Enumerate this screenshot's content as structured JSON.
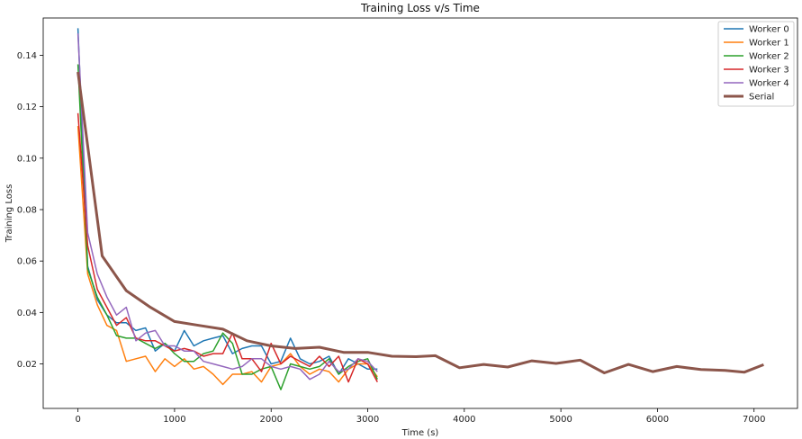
{
  "chart_data": {
    "type": "line",
    "title": "Training Loss v/s Time",
    "xlabel": "Time (s)",
    "ylabel": "Training Loss",
    "xlim": [
      -360,
      7450
    ],
    "ylim": [
      0.0027,
      0.1545
    ],
    "xticks": [
      0,
      1000,
      2000,
      3000,
      4000,
      5000,
      6000,
      7000
    ],
    "yticks": [
      0.02,
      0.04,
      0.06,
      0.08,
      0.1,
      0.12,
      0.14
    ],
    "ytick_labels": [
      "0.02",
      "0.04",
      "0.06",
      "0.08",
      "0.10",
      "0.12",
      "0.14"
    ],
    "legend": "top-right",
    "series": [
      {
        "name": "Worker 0",
        "color": "#1f77b4",
        "width": 1.5,
        "x": [
          0,
          100,
          200,
          300,
          400,
          500,
          600,
          700,
          800,
          900,
          1000,
          1100,
          1200,
          1300,
          1400,
          1500,
          1600,
          1700,
          1800,
          1900,
          2000,
          2100,
          2200,
          2300,
          2400,
          2500,
          2600,
          2700,
          2800,
          2900,
          3000,
          3100
        ],
        "y": [
          0.1505,
          0.058,
          0.045,
          0.039,
          0.036,
          0.036,
          0.033,
          0.034,
          0.025,
          0.028,
          0.025,
          0.033,
          0.027,
          0.029,
          0.03,
          0.031,
          0.024,
          0.026,
          0.027,
          0.027,
          0.02,
          0.021,
          0.03,
          0.022,
          0.02,
          0.021,
          0.023,
          0.016,
          0.022,
          0.02,
          0.018,
          0.018
        ]
      },
      {
        "name": "Worker 1",
        "color": "#ff7f0e",
        "width": 1.5,
        "x": [
          0,
          100,
          200,
          300,
          400,
          500,
          600,
          700,
          800,
          900,
          1000,
          1100,
          1200,
          1300,
          1400,
          1500,
          1600,
          1700,
          1800,
          1900,
          2000,
          2100,
          2200,
          2300,
          2400,
          2500,
          2600,
          2700,
          2800,
          2900,
          3000,
          3100
        ],
        "y": [
          0.1125,
          0.055,
          0.043,
          0.035,
          0.033,
          0.021,
          0.022,
          0.023,
          0.017,
          0.022,
          0.019,
          0.022,
          0.018,
          0.019,
          0.016,
          0.012,
          0.016,
          0.016,
          0.017,
          0.013,
          0.019,
          0.02,
          0.024,
          0.019,
          0.016,
          0.018,
          0.017,
          0.013,
          0.018,
          0.02,
          0.02,
          0.015
        ]
      },
      {
        "name": "Worker 2",
        "color": "#2ca02c",
        "width": 1.5,
        "x": [
          0,
          100,
          200,
          300,
          400,
          500,
          600,
          700,
          800,
          900,
          1000,
          1100,
          1200,
          1300,
          1400,
          1500,
          1600,
          1700,
          1800,
          1900,
          2000,
          2100,
          2200,
          2300,
          2400,
          2500,
          2600,
          2700,
          2800,
          2900,
          3000,
          3100
        ],
        "y": [
          0.1365,
          0.057,
          0.046,
          0.039,
          0.031,
          0.03,
          0.03,
          0.028,
          0.026,
          0.028,
          0.024,
          0.021,
          0.021,
          0.024,
          0.025,
          0.032,
          0.028,
          0.016,
          0.016,
          0.018,
          0.019,
          0.01,
          0.02,
          0.019,
          0.018,
          0.019,
          0.022,
          0.016,
          0.019,
          0.021,
          0.022,
          0.014
        ]
      },
      {
        "name": "Worker 3",
        "color": "#d62728",
        "width": 1.5,
        "x": [
          0,
          100,
          200,
          300,
          400,
          500,
          600,
          700,
          800,
          900,
          1000,
          1100,
          1200,
          1300,
          1400,
          1500,
          1600,
          1700,
          1800,
          1900,
          2000,
          2100,
          2200,
          2300,
          2400,
          2500,
          2600,
          2700,
          2800,
          2900,
          3000,
          3100
        ],
        "y": [
          0.1175,
          0.066,
          0.049,
          0.042,
          0.035,
          0.038,
          0.03,
          0.029,
          0.029,
          0.027,
          0.025,
          0.026,
          0.025,
          0.023,
          0.024,
          0.024,
          0.032,
          0.022,
          0.022,
          0.017,
          0.028,
          0.02,
          0.023,
          0.021,
          0.019,
          0.023,
          0.019,
          0.023,
          0.013,
          0.022,
          0.02,
          0.013
        ]
      },
      {
        "name": "Worker 4",
        "color": "#9467bd",
        "width": 1.5,
        "x": [
          0,
          100,
          200,
          300,
          400,
          500,
          600,
          700,
          800,
          900,
          1000,
          1100,
          1200,
          1300,
          1400,
          1500,
          1600,
          1700,
          1800,
          1900,
          2000,
          2100,
          2200,
          2300,
          2400,
          2500,
          2600,
          2700,
          2800,
          2900,
          3000,
          3100
        ],
        "y": [
          0.1485,
          0.071,
          0.055,
          0.046,
          0.039,
          0.042,
          0.029,
          0.032,
          0.033,
          0.027,
          0.027,
          0.025,
          0.025,
          0.021,
          0.02,
          0.019,
          0.018,
          0.019,
          0.022,
          0.022,
          0.019,
          0.018,
          0.019,
          0.018,
          0.014,
          0.016,
          0.021,
          0.017,
          0.018,
          0.022,
          0.021,
          0.017
        ]
      },
      {
        "name": "Serial",
        "color": "#8c564b",
        "width": 3,
        "x": [
          0,
          250,
          500,
          750,
          1000,
          1250,
          1500,
          1750,
          2000,
          2250,
          2500,
          2750,
          3000,
          3250,
          3500,
          3700,
          3950,
          4200,
          4450,
          4700,
          4950,
          5200,
          5450,
          5700,
          5950,
          6200,
          6450,
          6700,
          6900,
          7100
        ],
        "y": [
          0.1335,
          0.062,
          0.0485,
          0.042,
          0.0365,
          0.035,
          0.0335,
          0.029,
          0.027,
          0.026,
          0.0265,
          0.0245,
          0.0245,
          0.023,
          0.0228,
          0.0232,
          0.0185,
          0.0198,
          0.0188,
          0.0212,
          0.0202,
          0.0215,
          0.0165,
          0.0198,
          0.017,
          0.019,
          0.0178,
          0.0175,
          0.0168,
          0.0197
        ]
      }
    ]
  }
}
